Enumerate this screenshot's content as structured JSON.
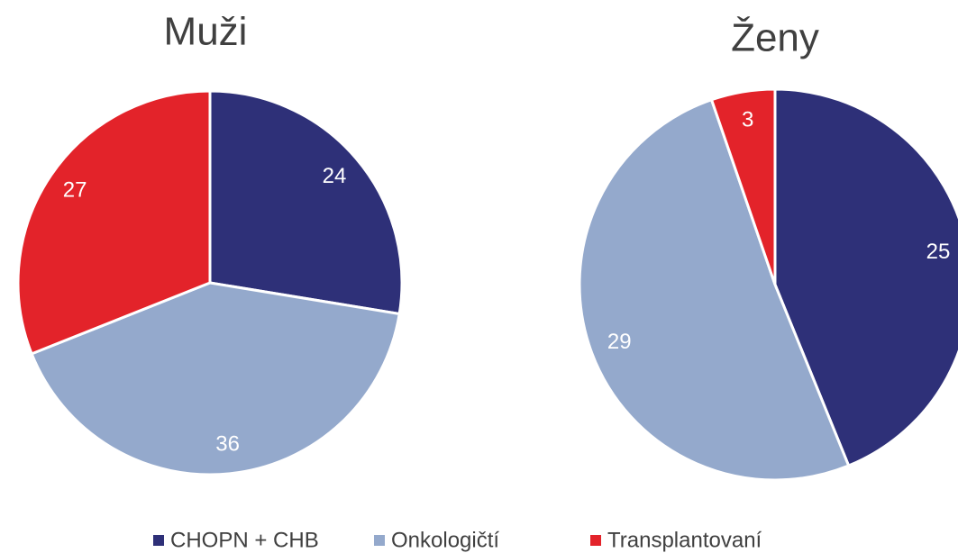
{
  "chart_data": {
    "type": "pie",
    "categories": [
      "CHOPN + CHB",
      "Onkologičtí",
      "Transplantovaní"
    ],
    "colors": [
      "#2e3078",
      "#94a9cc",
      "#e3232a"
    ],
    "series": [
      {
        "name": "Muži",
        "values": [
          24,
          36,
          27
        ]
      },
      {
        "name": "Ženy",
        "values": [
          25,
          29,
          3
        ]
      }
    ]
  }
}
